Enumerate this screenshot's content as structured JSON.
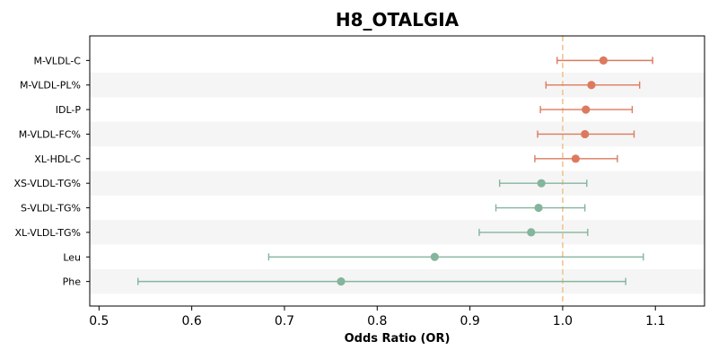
{
  "chart_data": {
    "type": "forest",
    "title": "H8_OTALGIA",
    "xlabel": "Odds Ratio (OR)",
    "xlim": [
      0.49,
      1.153
    ],
    "xticks": [
      0.5,
      0.6,
      0.7,
      0.8,
      0.9,
      1.0,
      1.1
    ],
    "xtick_labels": [
      "0.5",
      "0.6",
      "0.7",
      "0.8",
      "0.9",
      "1.0",
      "1.1"
    ],
    "reference_line": 1.0,
    "colors": {
      "positive": "#dd7a5e",
      "negative": "#84b59d",
      "reference": "#f2c48f",
      "band": "#f5f5f5"
    },
    "rows": [
      {
        "label": "M-VLDL-C",
        "or": 1.044,
        "lower": 0.994,
        "upper": 1.097,
        "direction": "positive"
      },
      {
        "label": "M-VLDL-PL%",
        "or": 1.031,
        "lower": 0.982,
        "upper": 1.083,
        "direction": "positive"
      },
      {
        "label": "IDL-P",
        "or": 1.025,
        "lower": 0.976,
        "upper": 1.075,
        "direction": "positive"
      },
      {
        "label": "M-VLDL-FC%",
        "or": 1.024,
        "lower": 0.973,
        "upper": 1.077,
        "direction": "positive"
      },
      {
        "label": "XL-HDL-C",
        "or": 1.014,
        "lower": 0.97,
        "upper": 1.059,
        "direction": "positive"
      },
      {
        "label": "XS-VLDL-TG%",
        "or": 0.977,
        "lower": 0.932,
        "upper": 1.026,
        "direction": "negative"
      },
      {
        "label": "S-VLDL-TG%",
        "or": 0.974,
        "lower": 0.928,
        "upper": 1.024,
        "direction": "negative"
      },
      {
        "label": "XL-VLDL-TG%",
        "or": 0.966,
        "lower": 0.91,
        "upper": 1.027,
        "direction": "negative"
      },
      {
        "label": "Leu",
        "or": 0.862,
        "lower": 0.683,
        "upper": 1.087,
        "direction": "negative"
      },
      {
        "label": "Phe",
        "or": 0.761,
        "lower": 0.542,
        "upper": 1.068,
        "direction": "negative"
      }
    ]
  }
}
